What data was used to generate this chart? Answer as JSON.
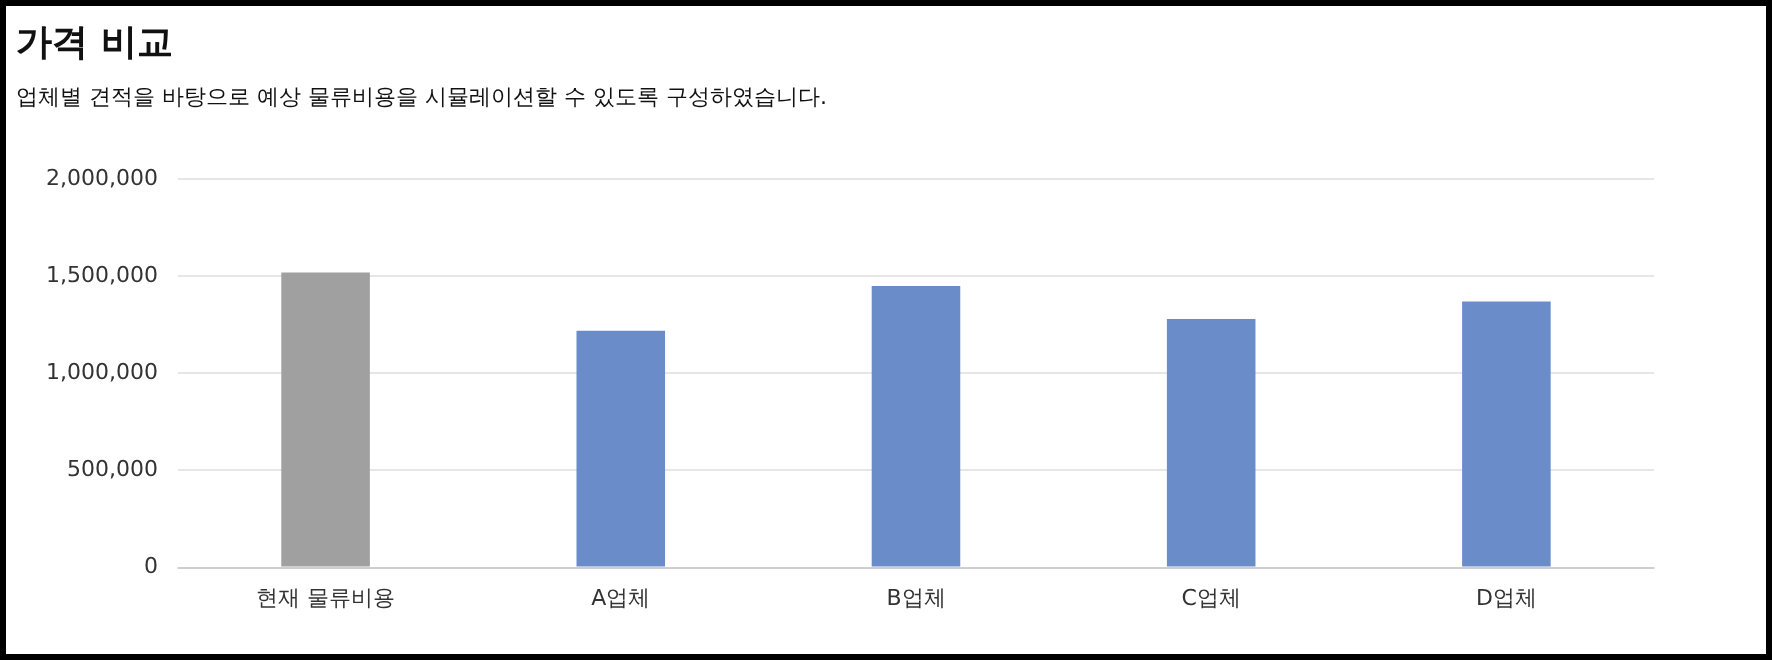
{
  "chart_data": {
    "type": "bar",
    "title": "가격 비교",
    "subtitle": "업체별 견적을 바탕으로 예상 물류비용을 시뮬레이션할 수 있도록 구성하였습니다.",
    "categories": [
      "현재 물류비용",
      "A업체",
      "B업체",
      "C업체",
      "D업체"
    ],
    "values": [
      1520000,
      1220000,
      1450000,
      1280000,
      1370000
    ],
    "colors": [
      "#a0a0a0",
      "#6a8cc8",
      "#6a8cc8",
      "#6a8cc8",
      "#6a8cc8"
    ],
    "ylim": [
      0,
      2000000
    ],
    "yticks": [
      0,
      {
        "value": 500000,
        "label": "500,000"
      },
      {
        "value": 1000000,
        "label": "1,000,000"
      },
      {
        "value": 1500000,
        "label": "1,500,000"
      },
      {
        "value": 2000000,
        "label": "2,000,000"
      }
    ],
    "grid": "y",
    "legend": false
  }
}
